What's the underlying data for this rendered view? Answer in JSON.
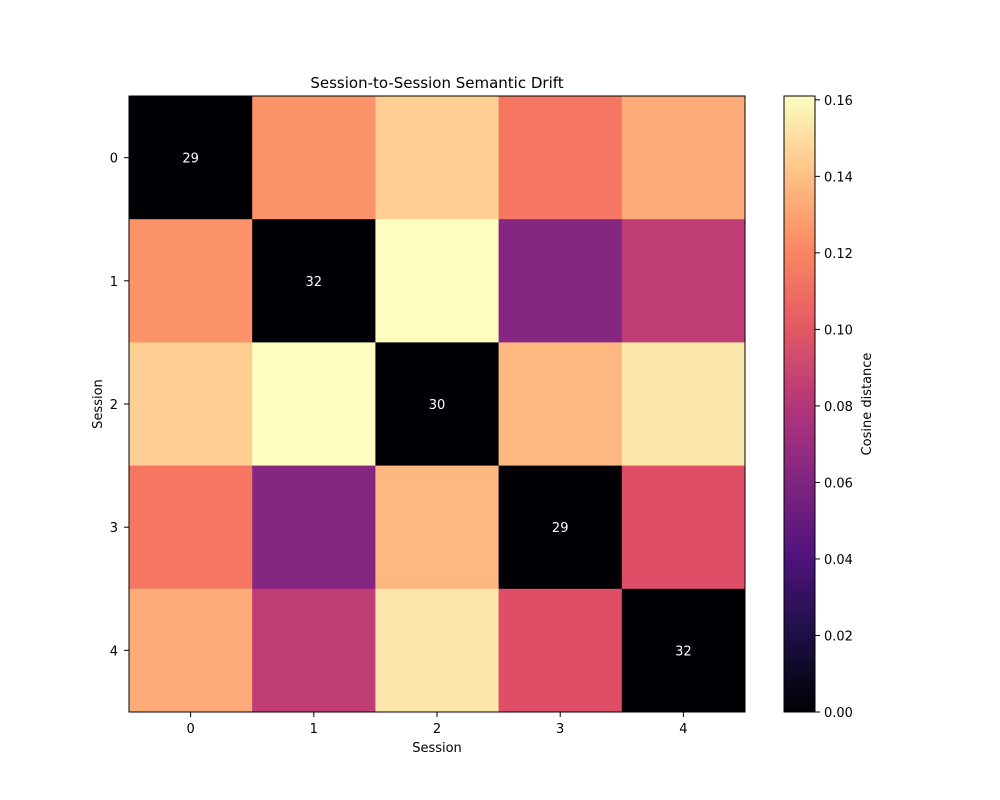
{
  "chart_data": {
    "type": "heatmap",
    "title": "Session-to-Session Semantic Drift",
    "xlabel": "Session",
    "ylabel": "Session",
    "x_categories": [
      "0",
      "1",
      "2",
      "3",
      "4"
    ],
    "y_categories": [
      "0",
      "1",
      "2",
      "3",
      "4"
    ],
    "values": [
      [
        0.0,
        0.125,
        0.145,
        0.115,
        0.133
      ],
      [
        0.125,
        0.0,
        0.161,
        0.062,
        0.085
      ],
      [
        0.145,
        0.161,
        0.0,
        0.137,
        0.153
      ],
      [
        0.115,
        0.062,
        0.137,
        0.0,
        0.098
      ],
      [
        0.133,
        0.085,
        0.153,
        0.098,
        0.0
      ]
    ],
    "annotations": [
      {
        "row": 0,
        "col": 0,
        "text": "29"
      },
      {
        "row": 1,
        "col": 1,
        "text": "32"
      },
      {
        "row": 2,
        "col": 2,
        "text": "30"
      },
      {
        "row": 3,
        "col": 3,
        "text": "29"
      },
      {
        "row": 4,
        "col": 4,
        "text": "32"
      }
    ],
    "colormap": "magma",
    "colorbar": {
      "label": "Cosine distance",
      "range": [
        0.0,
        0.161
      ],
      "ticks": [
        0.0,
        0.02,
        0.04,
        0.06,
        0.08,
        0.1,
        0.12,
        0.14,
        0.16
      ],
      "tick_labels": [
        "0.00",
        "0.02",
        "0.04",
        "0.06",
        "0.08",
        "0.10",
        "0.12",
        "0.14",
        "0.16"
      ]
    },
    "annotation_color": "#ffffff",
    "grid": false
  }
}
